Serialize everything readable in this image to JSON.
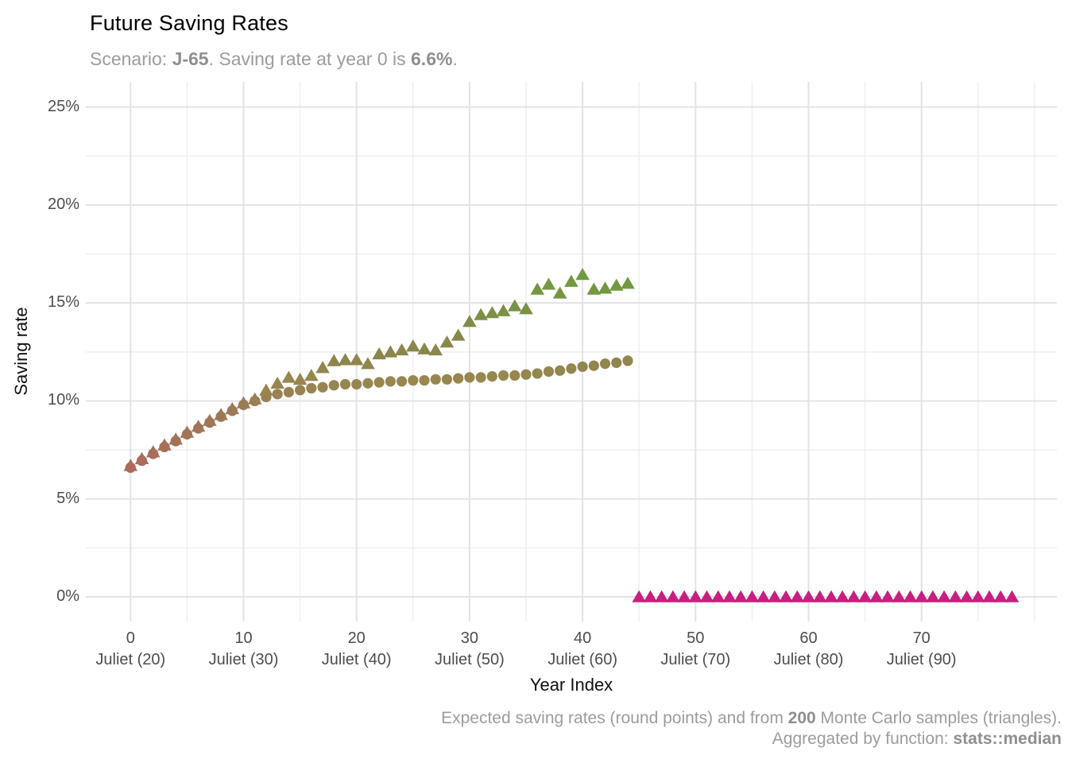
{
  "title": "Future Saving Rates",
  "subtitle": {
    "prefix": "Scenario: ",
    "scenario": "J-65",
    "mid": ". Saving rate at year 0 is ",
    "rate": "6.6%",
    "suffix": "."
  },
  "caption": {
    "line1_pre": "Expected saving rates (round points) and from ",
    "line1_bold": "200",
    "line1_post": " Monte Carlo samples (triangles).",
    "line2_pre": "Aggregated by function: ",
    "line2_bold": "stats::median"
  },
  "axes": {
    "x_title": "Year Index",
    "y_title": "Saving rate",
    "x_ticks": [
      {
        "value": 0,
        "label": "0",
        "sublabel": "Juliet (20)"
      },
      {
        "value": 10,
        "label": "10",
        "sublabel": "Juliet (30)"
      },
      {
        "value": 20,
        "label": "20",
        "sublabel": "Juliet (40)"
      },
      {
        "value": 30,
        "label": "30",
        "sublabel": "Juliet (50)"
      },
      {
        "value": 40,
        "label": "40",
        "sublabel": "Juliet (60)"
      },
      {
        "value": 50,
        "label": "50",
        "sublabel": "Juliet (70)"
      },
      {
        "value": 60,
        "label": "60",
        "sublabel": "Juliet (80)"
      },
      {
        "value": 70,
        "label": "70",
        "sublabel": "Juliet (90)"
      }
    ],
    "y_ticks": [
      {
        "value": 0,
        "label": "0%"
      },
      {
        "value": 5,
        "label": "5%"
      },
      {
        "value": 10,
        "label": "10%"
      },
      {
        "value": 15,
        "label": "15%"
      },
      {
        "value": 20,
        "label": "20%"
      },
      {
        "value": 25,
        "label": "25%"
      }
    ],
    "y_minor": [
      2.5,
      7.5,
      12.5,
      17.5,
      22.5
    ]
  },
  "chart_data": {
    "type": "scatter",
    "title": "Future Saving Rates",
    "subtitle": "Scenario: J-65. Saving rate at year 0 is 6.6%.",
    "caption": "Expected saving rates (round points) and from 200 Monte Carlo samples (triangles). Aggregated by function: stats::median",
    "xlabel": "Year Index",
    "ylabel": "Saving rate",
    "xlim": [
      -4,
      82
    ],
    "ylim": [
      -1.25,
      26.25
    ],
    "grid": "major+minor",
    "legend_position": "none",
    "series": [
      {
        "name": "Expected saving rate",
        "marker": "circle",
        "x": [
          0,
          1,
          2,
          3,
          4,
          5,
          6,
          7,
          8,
          9,
          10,
          11,
          12,
          13,
          14,
          15,
          16,
          17,
          18,
          19,
          20,
          21,
          22,
          23,
          24,
          25,
          26,
          27,
          28,
          29,
          30,
          31,
          32,
          33,
          34,
          35,
          36,
          37,
          38,
          39,
          40,
          41,
          42,
          43,
          44
        ],
        "y": [
          6.6,
          6.95,
          7.3,
          7.65,
          7.95,
          8.3,
          8.6,
          8.9,
          9.2,
          9.5,
          9.8,
          10.0,
          10.2,
          10.35,
          10.45,
          10.55,
          10.65,
          10.7,
          10.8,
          10.85,
          10.85,
          10.9,
          10.95,
          11.0,
          11.0,
          11.05,
          11.05,
          11.1,
          11.1,
          11.15,
          11.2,
          11.2,
          11.25,
          11.3,
          11.3,
          11.35,
          11.4,
          11.5,
          11.55,
          11.65,
          11.75,
          11.8,
          11.9,
          11.95,
          12.05
        ]
      },
      {
        "name": "Monte Carlo sample median",
        "marker": "triangle",
        "x": [
          0,
          1,
          2,
          3,
          4,
          5,
          6,
          7,
          8,
          9,
          10,
          11,
          12,
          13,
          14,
          15,
          16,
          17,
          18,
          19,
          20,
          21,
          22,
          23,
          24,
          25,
          26,
          27,
          28,
          29,
          30,
          31,
          32,
          33,
          34,
          35,
          36,
          37,
          38,
          39,
          40,
          41,
          42,
          43,
          44,
          45,
          46,
          47,
          48,
          49,
          50,
          51,
          52,
          53,
          54,
          55,
          56,
          57,
          58,
          59,
          60,
          61,
          62,
          63,
          64,
          65,
          66,
          67,
          68,
          69,
          70,
          71,
          72,
          73,
          74,
          75,
          76,
          77,
          78
        ],
        "y": [
          6.7,
          7.05,
          7.4,
          7.75,
          8.05,
          8.4,
          8.7,
          9.0,
          9.3,
          9.6,
          9.9,
          10.1,
          10.55,
          10.9,
          11.2,
          11.1,
          11.3,
          11.7,
          12.05,
          12.1,
          12.1,
          11.9,
          12.4,
          12.5,
          12.6,
          12.8,
          12.65,
          12.6,
          13.0,
          13.35,
          14.05,
          14.4,
          14.5,
          14.6,
          14.85,
          14.7,
          15.7,
          15.95,
          15.5,
          16.1,
          16.45,
          15.7,
          15.75,
          15.9,
          16.0,
          0,
          0,
          0,
          0,
          0,
          0,
          0,
          0,
          0,
          0,
          0,
          0,
          0,
          0,
          0,
          0,
          0,
          0,
          0,
          0,
          0,
          0,
          0,
          0,
          0,
          0,
          0,
          0,
          0,
          0,
          0,
          0,
          0,
          0
        ]
      }
    ],
    "color_scale": [
      {
        "v": 0,
        "c": "#c81f7f"
      },
      {
        "v": 6.6,
        "c": "#ae695c"
      },
      {
        "v": 9.8,
        "c": "#997c54"
      },
      {
        "v": 11,
        "c": "#98874f"
      },
      {
        "v": 12.2,
        "c": "#8e854d"
      },
      {
        "v": 13.5,
        "c": "#838a49"
      },
      {
        "v": 16.5,
        "c": "#6f9b40"
      }
    ],
    "grid_colors": {
      "major": "#e3e3e3",
      "minor": "#efefef"
    }
  }
}
